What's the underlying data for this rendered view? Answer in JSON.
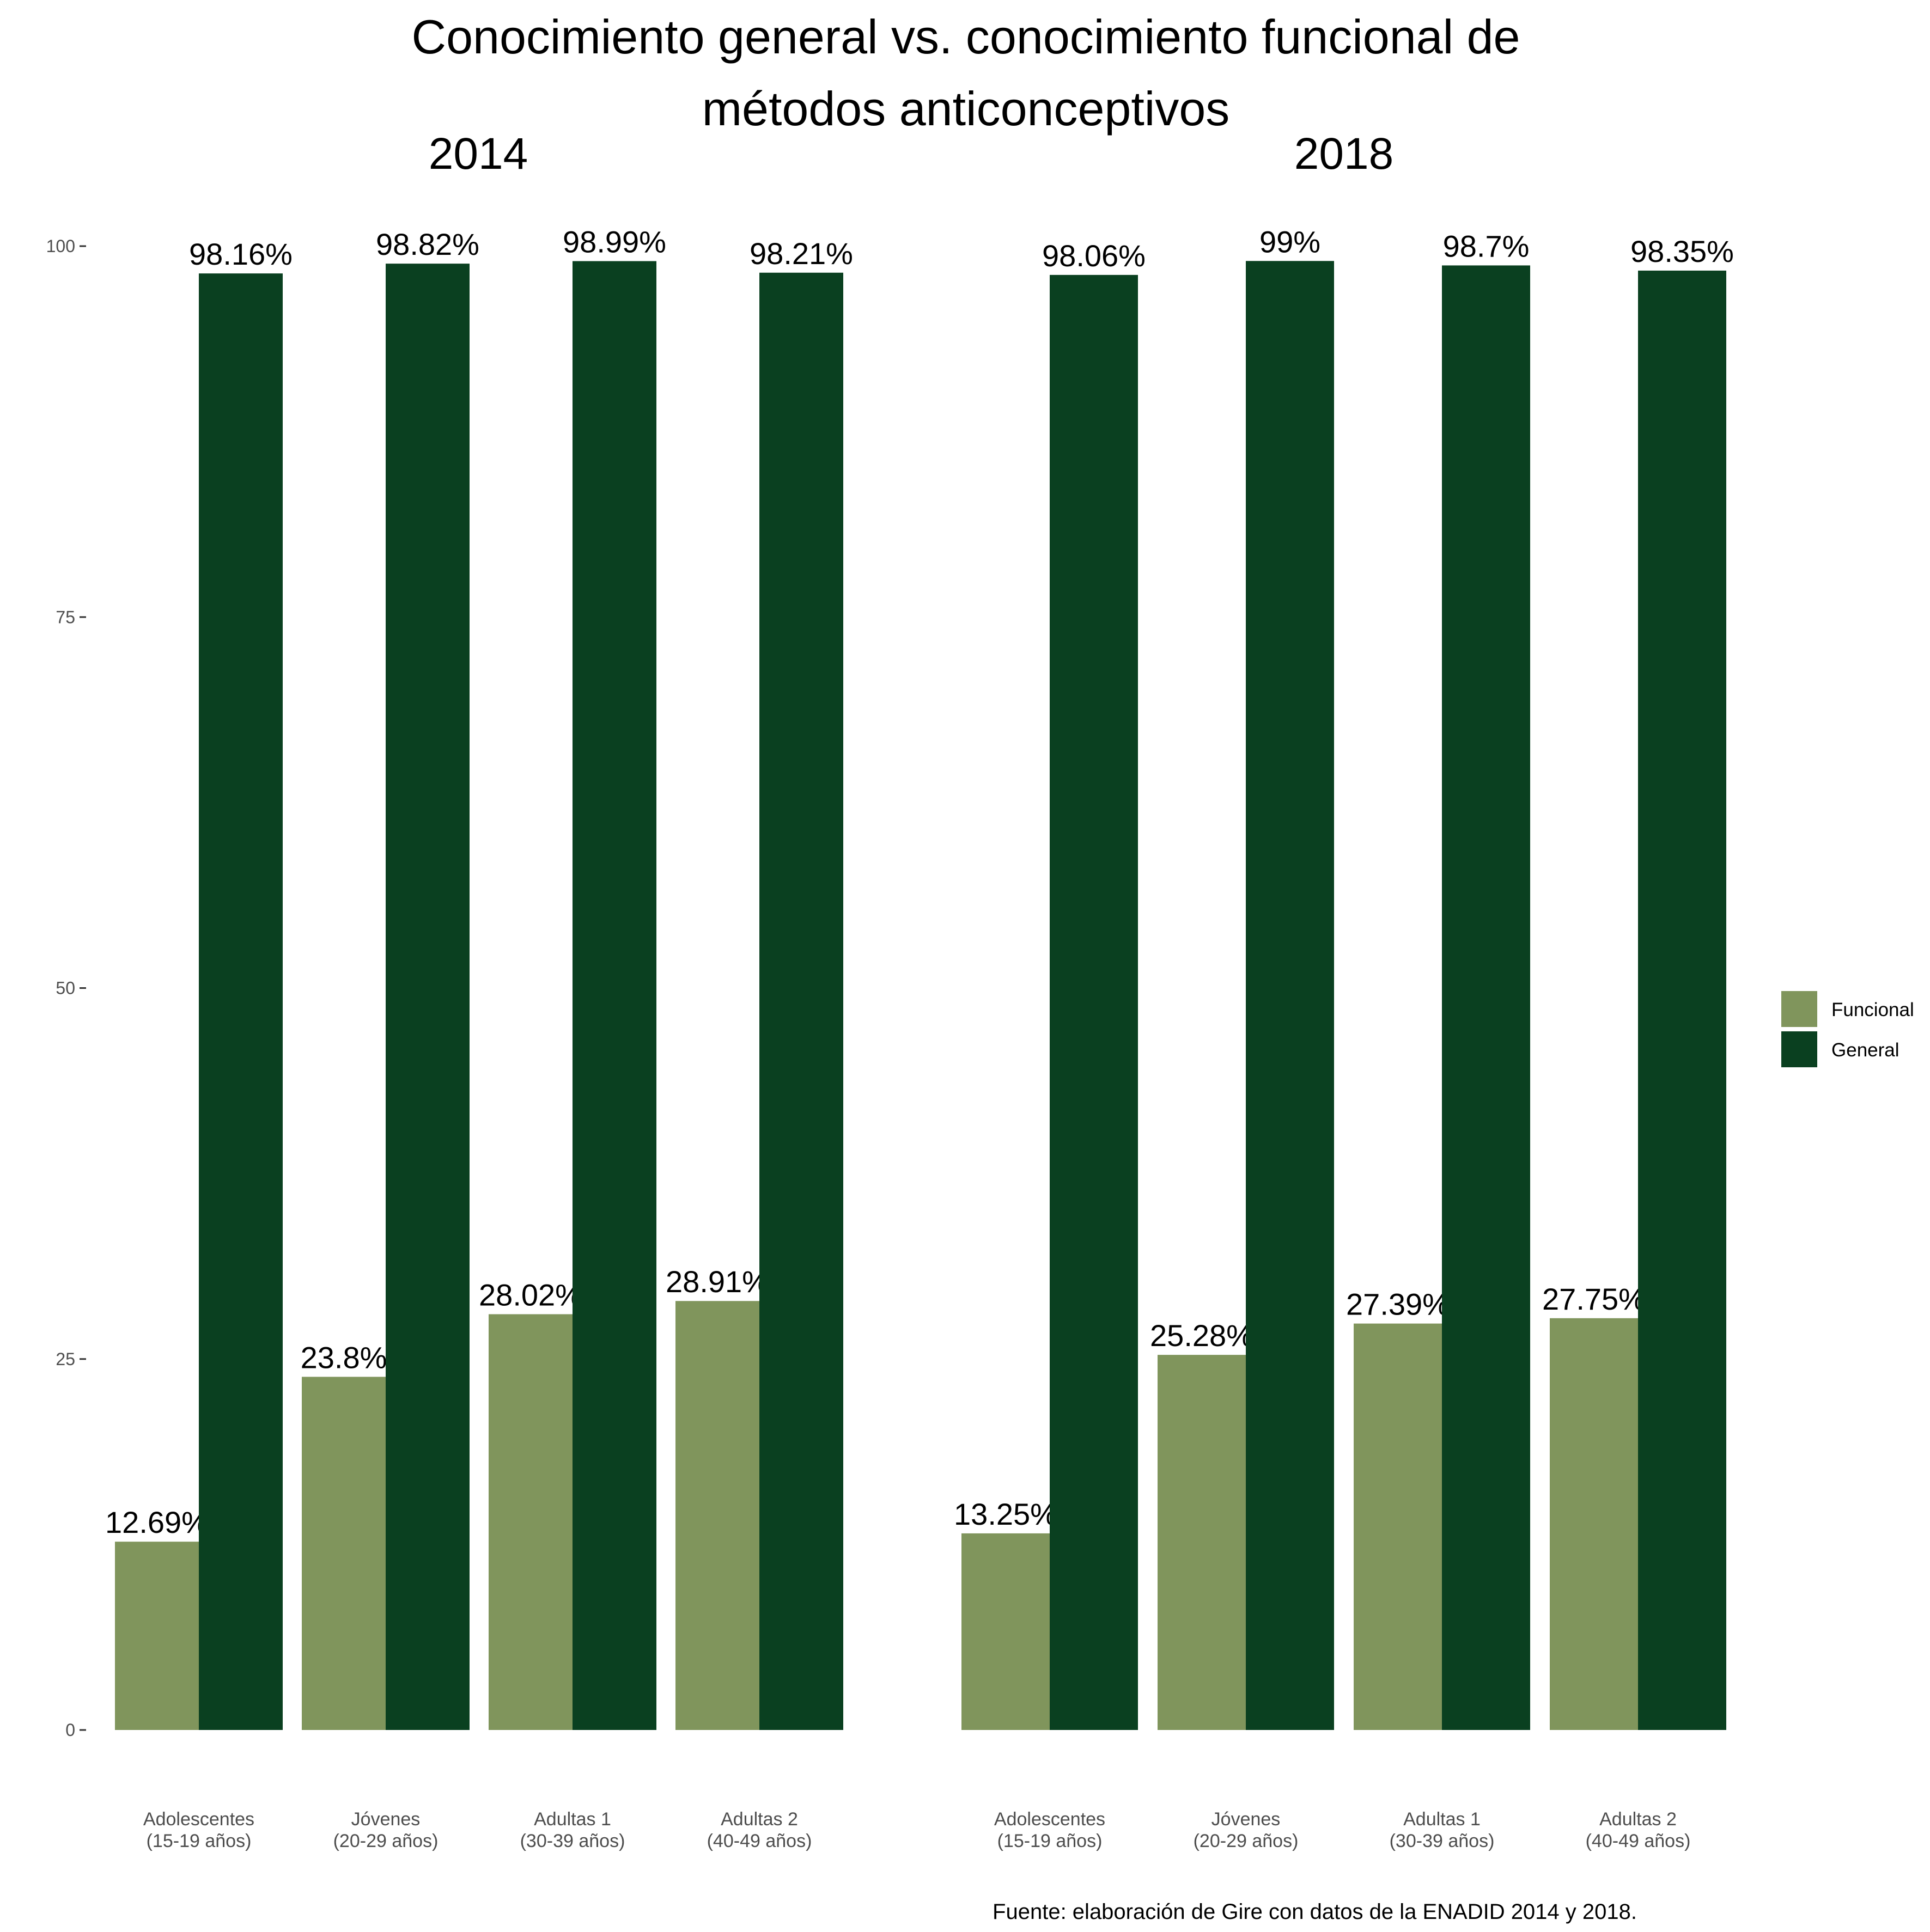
{
  "chart_data": {
    "type": "bar",
    "title_lines": [
      "Conocimiento general vs. conocimiento funcional de",
      "métodos anticonceptivos"
    ],
    "caption": "Fuente: elaboración de Gire con datos de la ENADID 2014 y 2018.",
    "ylim": [
      0,
      100
    ],
    "yticks": [
      0,
      25,
      50,
      75,
      100
    ],
    "grid": false,
    "legend_position": "right",
    "series_names": [
      "Funcional",
      "General"
    ],
    "colors": {
      "Funcional": "#80955c",
      "General": "#0a4020"
    },
    "panels": [
      {
        "title": "2014",
        "categories": [
          [
            "Adolescentes",
            "(15-19 años)"
          ],
          [
            "Jóvenes",
            "(20-29 años)"
          ],
          [
            "Adultas 1",
            "(30-39 años)"
          ],
          [
            "Adultas 2",
            "(40-49 años)"
          ]
        ],
        "series": [
          {
            "name": "Funcional",
            "values": [
              12.69,
              23.8,
              28.02,
              28.91
            ],
            "labels": [
              "12.69%",
              "23.8%",
              "28.02%",
              "28.91%"
            ]
          },
          {
            "name": "General",
            "values": [
              98.16,
              98.82,
              98.99,
              98.21
            ],
            "labels": [
              "98.16%",
              "98.82%",
              "98.99%",
              "98.21%"
            ]
          }
        ]
      },
      {
        "title": "2018",
        "categories": [
          [
            "Adolescentes",
            "(15-19 años)"
          ],
          [
            "Jóvenes",
            "(20-29 años)"
          ],
          [
            "Adultas 1",
            "(30-39 años)"
          ],
          [
            "Adultas 2",
            "(40-49 años)"
          ]
        ],
        "series": [
          {
            "name": "Funcional",
            "values": [
              13.25,
              25.28,
              27.39,
              27.75
            ],
            "labels": [
              "13.25%",
              "25.28%",
              "27.39%",
              "27.75%"
            ]
          },
          {
            "name": "General",
            "values": [
              98.06,
              99,
              98.7,
              98.35
            ],
            "labels": [
              "98.06%",
              "99%",
              "98.7%",
              "98.35%"
            ]
          }
        ]
      }
    ]
  }
}
